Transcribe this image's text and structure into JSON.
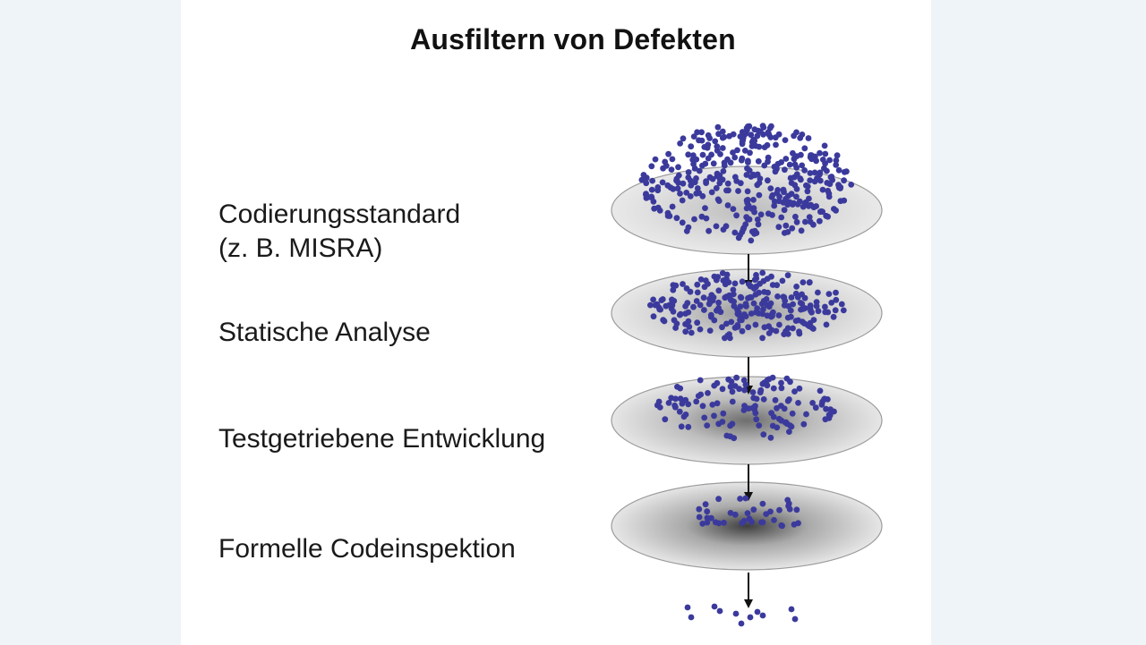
{
  "title": "Ausfiltern von Defekten",
  "filters": [
    {
      "label_lines": [
        "Codierungsstandard",
        "(z. B. MISRA)"
      ]
    },
    {
      "label_lines": [
        "Statische Analyse"
      ]
    },
    {
      "label_lines": [
        "Testgetriebene Entwicklung"
      ]
    },
    {
      "label_lines": [
        "Formelle Codeinspektion"
      ]
    }
  ],
  "colors": {
    "defect_dot": "#3b3a9c",
    "disc_fill": "#d9d9d9",
    "arrow": "#111111"
  }
}
